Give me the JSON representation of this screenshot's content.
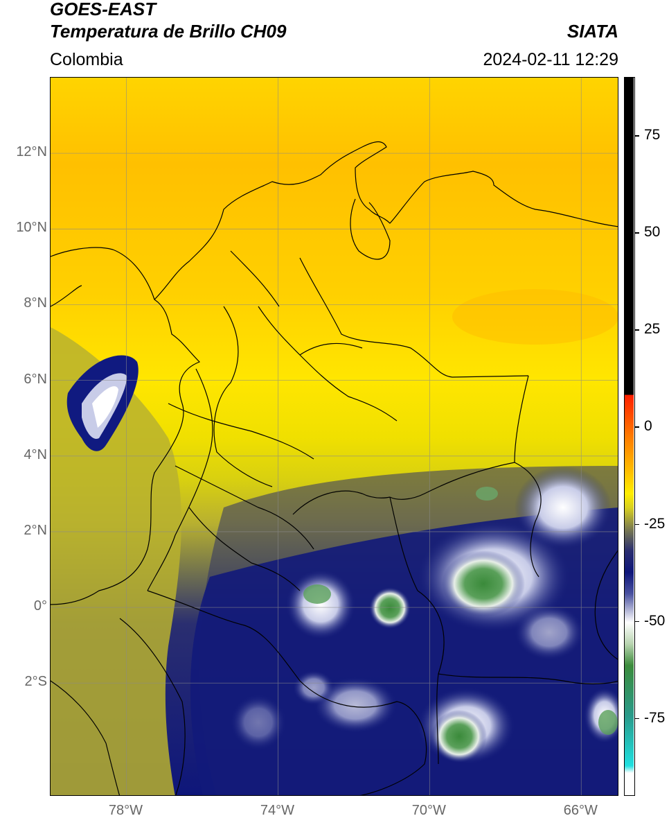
{
  "header": {
    "satellite": "GOES-EAST",
    "product": "Temperatura de Brillo CH09",
    "organization": "SIATA",
    "region": "Colombia",
    "timestamp": "2024-02-11 12:29"
  },
  "map": {
    "lon_range": [
      -80,
      -65
    ],
    "lat_range": [
      -5,
      14
    ],
    "lat_labels": [
      {
        "lat": 12,
        "text": "12°N"
      },
      {
        "lat": 10,
        "text": "10°N"
      },
      {
        "lat": 8,
        "text": "8°N"
      },
      {
        "lat": 6,
        "text": "6°N"
      },
      {
        "lat": 4,
        "text": "4°N"
      },
      {
        "lat": 2,
        "text": "2°N"
      },
      {
        "lat": 0,
        "text": "0°"
      },
      {
        "lat": -2,
        "text": "2°S"
      }
    ],
    "lon_labels": [
      {
        "lon": -78,
        "text": "78°W"
      },
      {
        "lon": -74,
        "text": "74°W"
      },
      {
        "lon": -70,
        "text": "70°W"
      },
      {
        "lon": -66,
        "text": "66°W"
      }
    ],
    "colors": {
      "warm_orange": "#ffc000",
      "yellow": "#ffe400",
      "olive": "#c3bc2a",
      "dark_olive": "#6e6e4a",
      "navy": "#101878",
      "white": "#ffffff",
      "green": "#3c8c3c"
    }
  },
  "colorbar": {
    "range": [
      -95,
      90
    ],
    "ticks": [
      {
        "value": 75,
        "text": "75"
      },
      {
        "value": 50,
        "text": "50"
      },
      {
        "value": 25,
        "text": "25"
      },
      {
        "value": 0,
        "text": "0"
      },
      {
        "value": -25,
        "text": "-25"
      },
      {
        "value": -50,
        "text": "-50"
      },
      {
        "value": -75,
        "text": "-75"
      }
    ]
  }
}
